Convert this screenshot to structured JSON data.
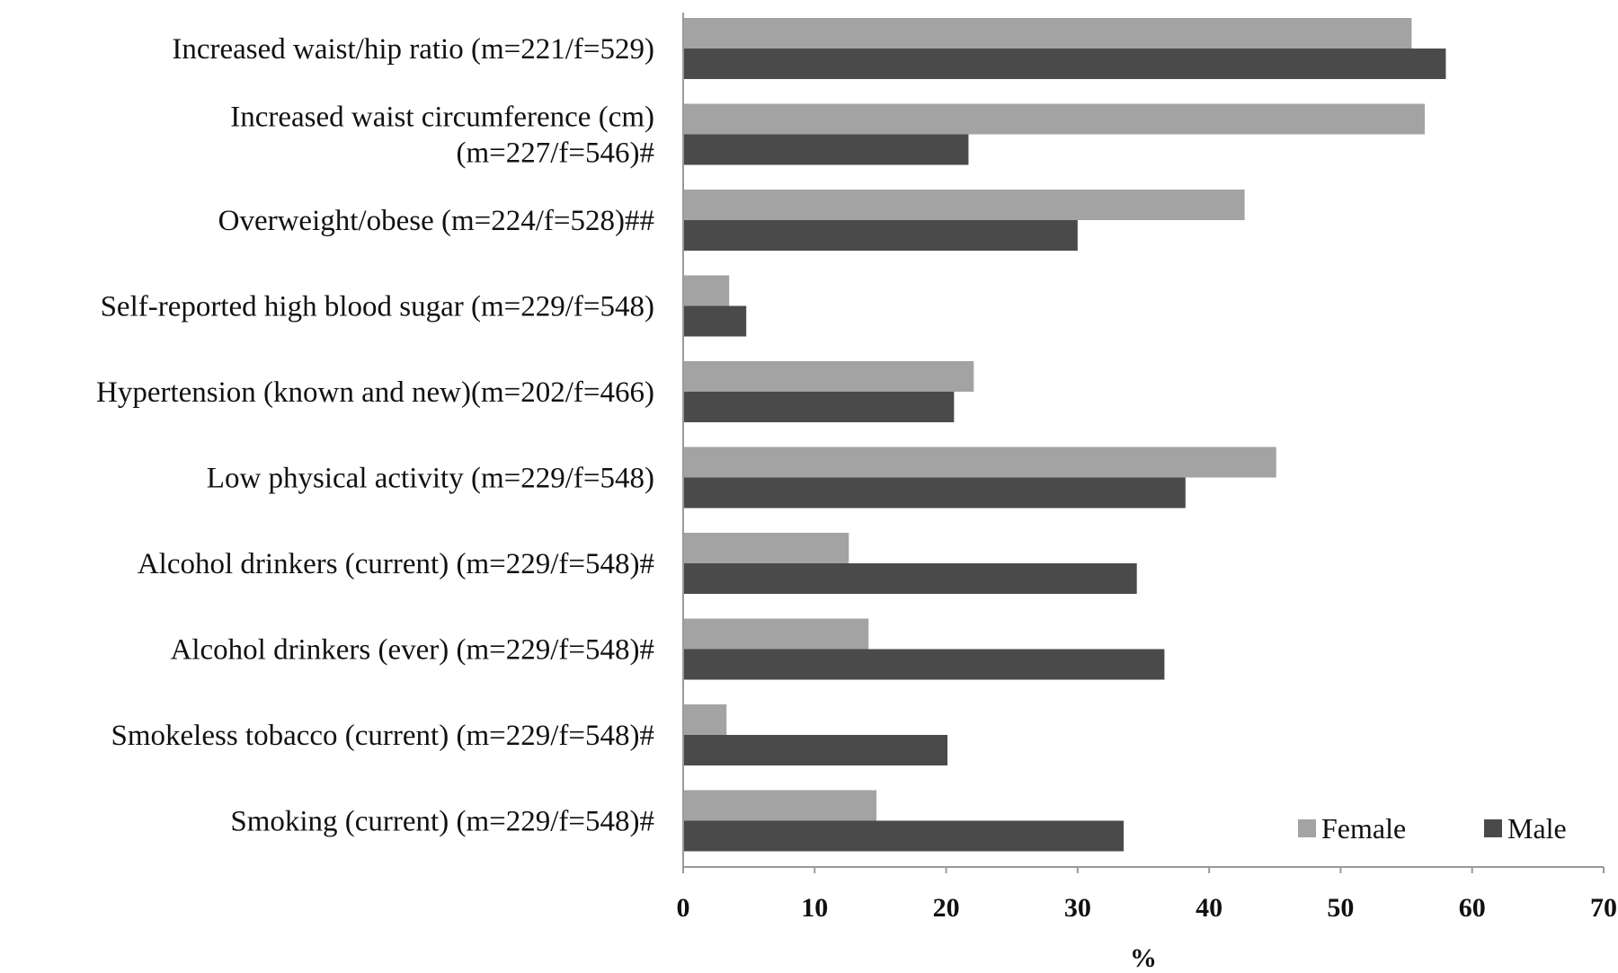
{
  "chart_data": {
    "type": "bar",
    "orientation": "horizontal",
    "xlabel": "%",
    "ylabel": "",
    "xlim": [
      0,
      70
    ],
    "xticks": [
      "0",
      "10",
      "20",
      "30",
      "40",
      "50",
      "60",
      "70"
    ],
    "grid": false,
    "legend_position": "bottom-right",
    "categories": [
      [
        "Increased waist/hip ratio (m=221/f=529)"
      ],
      [
        "Increased waist circumference (cm)",
        "(m=227/f=546)#"
      ],
      [
        "Overweight/obese (m=224/f=528)##"
      ],
      [
        "Self-reported high blood sugar (m=229/f=548)"
      ],
      [
        "Hypertension (known and new)(m=202/f=466)"
      ],
      [
        "Low physical activity (m=229/f=548)"
      ],
      [
        "Alcohol drinkers (current) (m=229/f=548)#"
      ],
      [
        "Alcohol drinkers (ever) (m=229/f=548)#"
      ],
      [
        "Smokeless tobacco (current) (m=229/f=548)#"
      ],
      [
        "Smoking (current) (m=229/f=548)#"
      ]
    ],
    "series": [
      {
        "name": "Female",
        "color": "#a3a3a3",
        "values": [
          55.4,
          56.4,
          42.7,
          3.5,
          22.1,
          45.1,
          12.6,
          14.1,
          3.3,
          14.7
        ]
      },
      {
        "name": "Male",
        "color": "#4a4a4a",
        "values": [
          58.0,
          21.7,
          30.0,
          4.8,
          20.6,
          38.2,
          34.5,
          36.6,
          20.1,
          33.5
        ]
      }
    ]
  }
}
